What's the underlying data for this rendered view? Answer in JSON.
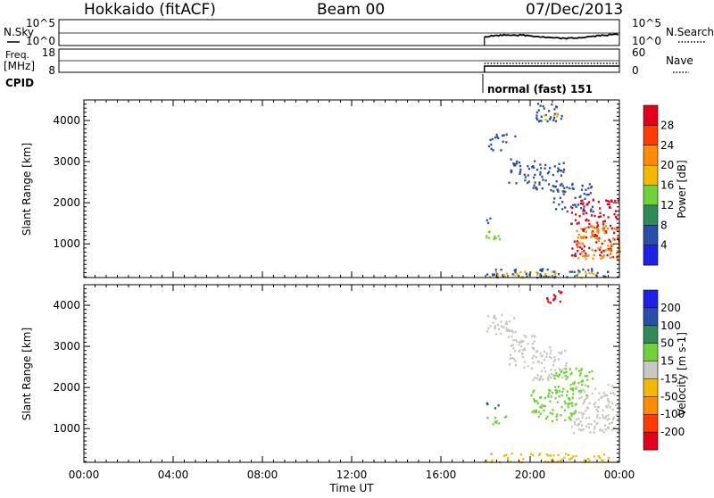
{
  "header": {
    "station": "Hokkaido (fitACF)",
    "beam": "Beam 00",
    "date": "07/Dec/2013"
  },
  "noise_panel": {
    "left_label": "N.Sky",
    "left_ticks": [
      "10^5",
      "10^0"
    ],
    "right_ticks": [
      "10^5",
      "10^0"
    ],
    "right_label": "N.Search"
  },
  "freq_panel": {
    "left_label_1": "Freq.",
    "left_label_2": "[MHz]",
    "left_ticks": [
      "18",
      "8"
    ],
    "right_ticks": [
      "60",
      "0"
    ],
    "right_label": "Nave"
  },
  "cpid": {
    "label": "CPID",
    "program": "normal (fast) 151"
  },
  "chart_data": [
    {
      "type": "heatmap",
      "name": "power",
      "xlabel": "Time UT",
      "ylabel": "Slant Range [km]",
      "x_ticks": [
        "00:00",
        "04:00",
        "08:00",
        "12:00",
        "16:00",
        "20:00",
        "00:00"
      ],
      "x_tick_hours": [
        0,
        4,
        8,
        12,
        16,
        20,
        24
      ],
      "y_ticks": [
        1000,
        2000,
        3000,
        4000
      ],
      "ylim": [
        180,
        4500
      ],
      "xlim_hours": [
        0,
        24
      ],
      "data_start_hour": 17.95,
      "colorbar": {
        "label": "Power [dB]",
        "ticks": [
          "28",
          "24",
          "20",
          "16",
          "12",
          "8",
          "4"
        ],
        "colors": [
          "#e3001b",
          "#ff3b00",
          "#ff8c00",
          "#f5b800",
          "#6fd23a",
          "#2e8b57",
          "#2a4fa8",
          "#1e22e8"
        ]
      },
      "echo_regions": [
        {
          "t0": 18.0,
          "t1": 23.5,
          "r0": 200,
          "r1": 420,
          "color": "#2a4fa8"
        },
        {
          "t0": 18.0,
          "t1": 23.0,
          "r0": 200,
          "r1": 350,
          "color": "#e3b200"
        },
        {
          "t0": 18.1,
          "t1": 19.3,
          "r0": 3300,
          "r1": 3700,
          "color": "#2a4fa8"
        },
        {
          "t0": 19.0,
          "t1": 20.2,
          "r0": 2500,
          "r1": 3100,
          "color": "#2a4fa8"
        },
        {
          "t0": 20.0,
          "t1": 21.5,
          "r0": 2300,
          "r1": 3000,
          "color": "#2a4fa8"
        },
        {
          "t0": 21.0,
          "t1": 22.8,
          "r0": 1800,
          "r1": 2500,
          "color": "#2a4fa8"
        },
        {
          "t0": 21.8,
          "t1": 24.0,
          "r0": 700,
          "r1": 2100,
          "color": "#e3001b"
        },
        {
          "t0": 22.0,
          "t1": 24.0,
          "r0": 650,
          "r1": 1500,
          "color": "#ff8c00"
        },
        {
          "t0": 20.2,
          "t1": 21.4,
          "r0": 4000,
          "r1": 4450,
          "color": "#2a4fa8"
        },
        {
          "t0": 20.6,
          "t1": 21.2,
          "r0": 4000,
          "r1": 4300,
          "color": "#f5b800"
        },
        {
          "t0": 18.0,
          "t1": 18.6,
          "r0": 1500,
          "r1": 1650,
          "color": "#2a4fa8"
        },
        {
          "t0": 18.0,
          "t1": 18.9,
          "r0": 1130,
          "r1": 1330,
          "color": "#6fd23a"
        }
      ]
    },
    {
      "type": "heatmap",
      "name": "velocity",
      "xlabel": "Time UT",
      "ylabel": "Slant Range [km]",
      "x_ticks": [
        "00:00",
        "04:00",
        "08:00",
        "12:00",
        "16:00",
        "20:00",
        "00:00"
      ],
      "x_tick_hours": [
        0,
        4,
        8,
        12,
        16,
        20,
        24
      ],
      "y_ticks": [
        1000,
        2000,
        3000,
        4000
      ],
      "ylim": [
        180,
        4500
      ],
      "xlim_hours": [
        0,
        24
      ],
      "colorbar": {
        "label": "Velocity [m s-1]",
        "ticks": [
          "200",
          "100",
          "50",
          "15",
          "-15",
          "-50",
          "-100",
          "-200"
        ],
        "colors": [
          "#1e22e8",
          "#2a4fa8",
          "#2e8b57",
          "#6fd23a",
          "#c8c8c0",
          "#f5b800",
          "#ff8c00",
          "#ff3b00",
          "#e3001b"
        ]
      },
      "echo_regions": [
        {
          "t0": 18.0,
          "t1": 23.5,
          "r0": 200,
          "r1": 420,
          "color": "#f5b800"
        },
        {
          "t0": 18.0,
          "t1": 19.3,
          "r0": 3300,
          "r1": 3800,
          "color": "#c8c8c0"
        },
        {
          "t0": 19.0,
          "t1": 20.2,
          "r0": 2500,
          "r1": 3300,
          "color": "#c8c8c0"
        },
        {
          "t0": 20.0,
          "t1": 21.6,
          "r0": 2200,
          "r1": 3000,
          "color": "#c8c8c0"
        },
        {
          "t0": 21.0,
          "t1": 22.8,
          "r0": 1800,
          "r1": 2500,
          "color": "#6fd23a"
        },
        {
          "t0": 21.8,
          "t1": 24.0,
          "r0": 900,
          "r1": 2100,
          "color": "#c8c8c0"
        },
        {
          "t0": 20.0,
          "t1": 22.0,
          "r0": 1200,
          "r1": 2000,
          "color": "#6fd23a"
        },
        {
          "t0": 20.6,
          "t1": 21.4,
          "r0": 4050,
          "r1": 4400,
          "color": "#e3001b"
        },
        {
          "t0": 18.0,
          "t1": 18.6,
          "r0": 1500,
          "r1": 1650,
          "color": "#2a4fa8"
        },
        {
          "t0": 18.0,
          "t1": 18.9,
          "r0": 1130,
          "r1": 1330,
          "color": "#6fd23a"
        }
      ]
    }
  ]
}
